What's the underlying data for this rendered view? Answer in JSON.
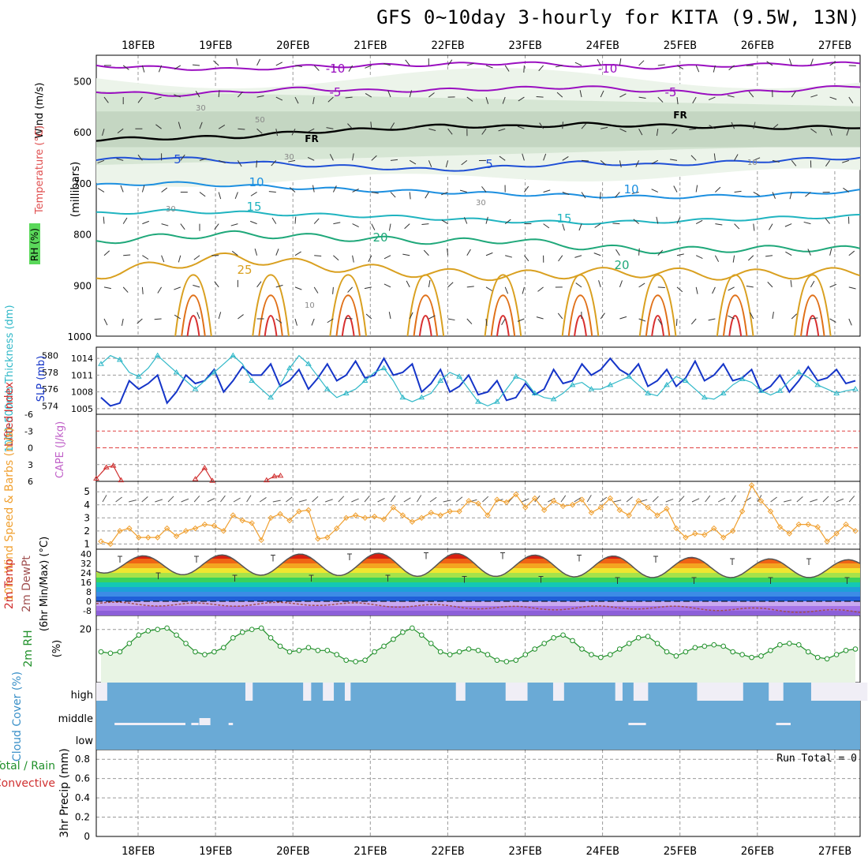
{
  "title": "GFS 0~10day 3-hourly for KITA (9.5W, 13N)",
  "chart_data": {
    "type": "line",
    "dates": [
      "18FEB",
      "19FEB",
      "20FEB",
      "21FEB",
      "22FEB",
      "23FEB",
      "24FEB",
      "25FEB",
      "26FEB",
      "27FEB"
    ],
    "panels": [
      {
        "id": "upper",
        "labels": {
          "wind": "Wind (m/s)",
          "temp": "Temperature (°C)",
          "rh": "RH (%)",
          "axis": "(millibars)"
        },
        "y_ticks": [
          500,
          600,
          700,
          800,
          900,
          1000
        ],
        "ylim": [
          450,
          1000
        ],
        "rh_labels": [
          "30",
          "50",
          "30",
          "30",
          "30",
          "10",
          "10"
        ],
        "isotherm_labels": [
          "-10",
          "-10",
          "-5",
          "-5",
          "FR",
          "FR",
          "5",
          "5",
          "10",
          "10",
          "15",
          "15",
          "20",
          "20",
          "25"
        ],
        "isotherms": [
          {
            "name": "-10",
            "color": "#9a0fc0",
            "p": [
              470,
              475,
              478,
              472,
              470,
              468,
              465,
              470,
              474,
              470,
              468,
              466
            ]
          },
          {
            "name": "-5",
            "color": "#9a0fc0",
            "p": [
              520,
              528,
              522,
              515,
              520,
              518,
              515,
              512,
              520,
              525,
              518,
              510
            ]
          },
          {
            "name": "FR",
            "color": "#000000",
            "p": [
              615,
              612,
              610,
              600,
              595,
              588,
              590,
              585,
              588,
              590,
              592,
              590
            ]
          },
          {
            "name": "5",
            "color": "#1f4fd6",
            "p": [
              655,
              650,
              658,
              665,
              670,
              675,
              668,
              660,
              665,
              660,
              655,
              650
            ]
          },
          {
            "name": "10",
            "color": "#1c8fe0",
            "p": [
              705,
              700,
              705,
              710,
              715,
              718,
              722,
              725,
              728,
              726,
              722,
              715
            ]
          },
          {
            "name": "15",
            "color": "#20b4c0",
            "p": [
              760,
              755,
              758,
              762,
              765,
              770,
              775,
              778,
              776,
              772,
              768,
              765
            ]
          },
          {
            "name": "20",
            "color": "#1fa87a",
            "p": [
              815,
              805,
              800,
              805,
              810,
              815,
              812,
              825,
              832,
              830,
              828,
              830
            ]
          },
          {
            "name": "25",
            "color": "#d9a020",
            "p": [
              880,
              860,
              845,
              860,
              870,
              878,
              882,
              876,
              875,
              880,
              878,
              875
            ]
          }
        ]
      },
      {
        "id": "thickness_slp",
        "labels": {
          "thickness": "1000-500mb Thickness (dm)",
          "slp": "SLP (mb)"
        },
        "left_ticks": [
          "580",
          "578",
          "576",
          "574"
        ],
        "right_ticks": [
          "1014",
          "1011",
          "1008",
          "1005"
        ],
        "thickness_ylim": [
          573,
          581
        ],
        "slp_ylim": [
          1004,
          1016
        ],
        "slp": [
          1007,
          1005.5,
          1006,
          1010,
          1008.5,
          1009.5,
          1011,
          1006,
          1008,
          1011,
          1009.5,
          1010,
          1012,
          1008,
          1010,
          1012.5,
          1011,
          1011,
          1013,
          1009,
          1010,
          1012,
          1008.5,
          1010.5,
          1013,
          1010,
          1011,
          1013.5,
          1010.5,
          1011,
          1014,
          1011,
          1011.5,
          1013,
          1008,
          1009.5,
          1012,
          1008,
          1009,
          1011,
          1007.5,
          1008,
          1010,
          1006.5,
          1007,
          1009.5,
          1007.5,
          1008.5,
          1012,
          1009.5,
          1010,
          1013,
          1011,
          1012,
          1014,
          1012,
          1011,
          1013,
          1009,
          1010,
          1012,
          1009,
          1010.5,
          1013.5,
          1010,
          1011,
          1013,
          1010,
          1010.5,
          1012,
          1008,
          1009,
          1011,
          1008,
          1010,
          1012.5,
          1010,
          1010.5,
          1012,
          1009.5,
          1010
        ],
        "thickness": [
          579,
          580,
          579.5,
          578,
          577.5,
          578.5,
          580,
          579,
          578,
          577,
          576,
          577,
          578,
          579,
          580,
          579,
          577,
          576,
          575,
          576.5,
          578.5,
          580,
          579,
          577.5,
          576,
          575,
          575.5,
          576,
          577,
          578,
          578.5,
          577,
          575,
          574.5,
          575,
          575.5,
          577,
          578,
          577.5,
          576,
          574.5,
          574,
          574.5,
          576,
          577.5,
          577,
          575.5,
          575,
          574.8,
          575.5,
          576.5,
          576.8,
          576,
          576,
          576.5,
          577,
          577.5,
          576.5,
          575.5,
          575.2,
          576.5,
          577.5,
          577,
          576,
          575,
          574.8,
          575.5,
          576.5,
          577.2,
          576.8,
          575.8,
          575.3,
          575.8,
          577,
          578,
          577.4,
          576.5,
          576,
          575.5,
          575.8,
          576
        ]
      },
      {
        "id": "li_cape",
        "labels": {
          "li": "Lifted Index",
          "cape": "CAPE (J/kg)"
        },
        "left_ticks": [
          "-6",
          "-3",
          "0",
          "3",
          "6"
        ],
        "ylim": [
          -6,
          6
        ],
        "li_segments": [
          {
            "x": [
              0.0,
              0.13,
              0.22,
              0.32
            ],
            "y": [
              5.5,
              3.5,
              3.2,
              5.8
            ]
          },
          {
            "x": [
              1.28,
              1.4,
              1.5
            ],
            "y": [
              5.6,
              3.6,
              5.9
            ]
          },
          {
            "x": [
              2.2,
              2.3,
              2.38
            ],
            "y": [
              5.8,
              5.1,
              5.0
            ]
          }
        ]
      },
      {
        "id": "wind10m",
        "labels": {
          "wind": "10m Wind Speed & Barbs (m/s)"
        },
        "left_ticks": [
          "5",
          "4",
          "3",
          "2",
          "1"
        ],
        "ylim": [
          0.6,
          5.8
        ],
        "speed": [
          1.2,
          1,
          2,
          2.2,
          1.5,
          1.5,
          1.5,
          2.2,
          1.6,
          2,
          2.2,
          2.5,
          2.4,
          2,
          3.2,
          2.8,
          2.6,
          1.3,
          3,
          3.3,
          2.8,
          3.5,
          3.6,
          1.4,
          1.5,
          2.2,
          3,
          3.2,
          3,
          3.1,
          2.9,
          3.8,
          3.2,
          2.7,
          3,
          3.4,
          3.2,
          3.5,
          3.5,
          4.3,
          4.1,
          3.2,
          4.4,
          4.2,
          4.8,
          3.8,
          4.5,
          3.6,
          4.3,
          3.9,
          4,
          4.4,
          3.4,
          3.8,
          4.5,
          3.6,
          3.2,
          4.3,
          3.8,
          3.2,
          3.7,
          2.2,
          1.5,
          1.8,
          1.7,
          2.2,
          1.5,
          2,
          3.5,
          5.5,
          4.3,
          3.5,
          2.3,
          1.8,
          2.5,
          2.5,
          2.3,
          1.2,
          1.8,
          2.5,
          2
        ],
        "barbs": "yes"
      },
      {
        "id": "temp2m",
        "labels": {
          "temp": "2m Temp",
          "dewpt": "2m DewPt",
          "minmax": "(6hr Min/Max) (°C)"
        },
        "left_ticks": [
          "40",
          "32",
          "24",
          "16",
          "8",
          "0",
          "-8"
        ],
        "ylim": [
          -12,
          44
        ],
        "color_bands": [
          {
            "from": -12,
            "to": -8,
            "color": "#8c5fd8"
          },
          {
            "from": -8,
            "to": -4,
            "color": "#a775e8"
          },
          {
            "from": -4,
            "to": 0,
            "color": "#c9a8f0"
          },
          {
            "from": 0,
            "to": 4,
            "color": "#2060d8"
          },
          {
            "from": 4,
            "to": 8,
            "color": "#3c8ce6"
          },
          {
            "from": 8,
            "to": 12,
            "color": "#1ea0d8"
          },
          {
            "from": 12,
            "to": 16,
            "color": "#14c8b4"
          },
          {
            "from": 16,
            "to": 20,
            "color": "#3cd25a"
          },
          {
            "from": 20,
            "to": 24,
            "color": "#a6e24a"
          },
          {
            "from": 24,
            "to": 28,
            "color": "#f0e630"
          },
          {
            "from": 28,
            "to": 32,
            "color": "#f4a420"
          },
          {
            "from": 32,
            "to": 36,
            "color": "#f06414"
          },
          {
            "from": 36,
            "to": 40,
            "color": "#d82010"
          },
          {
            "from": 40,
            "to": 44,
            "color": "#8c1010"
          }
        ],
        "temp_max": [
          38,
          39,
          40,
          41,
          39,
          38,
          36,
          35
        ],
        "temp_min": [
          24,
          22,
          22,
          21,
          21,
          20,
          20,
          20
        ],
        "dewpt": [
          -2,
          -3,
          -2,
          -4,
          -6,
          -5,
          -7,
          -9
        ]
      },
      {
        "id": "rh2m",
        "labels": {
          "rh": "2m RH",
          "unit": "(%)"
        },
        "left_ticks": [
          "20"
        ],
        "ylim": [
          1,
          25
        ],
        "values": [
          12,
          11.5,
          12,
          15,
          18,
          19.5,
          20,
          20.5,
          18,
          15,
          12,
          11,
          12,
          13.5,
          17,
          19,
          20,
          20.5,
          17,
          14,
          12,
          12.5,
          13.5,
          12.5,
          12.5,
          11,
          9,
          8.5,
          9,
          12,
          14,
          16.5,
          19,
          20.5,
          18,
          15,
          12,
          11,
          12,
          13,
          12.5,
          11,
          9,
          8.5,
          9,
          11,
          13,
          15,
          17,
          18,
          16,
          13,
          11,
          10,
          11,
          13,
          15,
          17,
          17.5,
          15,
          12,
          10.5,
          12,
          13.5,
          14,
          14.5,
          14,
          12,
          11,
          10,
          10.5,
          12.5,
          14.5,
          15,
          14.5,
          12,
          10,
          9.5,
          11,
          12.5,
          13
        ]
      },
      {
        "id": "cloud",
        "labels": {
          "cover": "Cloud Cover (%)",
          "high": "high",
          "middle": "middle",
          "low": "low"
        },
        "high_gaps": [
          [
            0,
            0.15
          ],
          [
            2.04,
            2.14
          ],
          [
            2.83,
            2.94
          ],
          [
            3.1,
            3.25
          ],
          [
            3.4,
            3.48
          ],
          [
            4.92,
            5.05
          ],
          [
            5.6,
            5.9
          ],
          [
            6.25,
            6.4
          ],
          [
            7.1,
            7.2
          ],
          [
            7.35,
            7.55
          ],
          [
            8.22,
            8.85
          ],
          [
            9.2,
            9.4
          ],
          [
            9.78,
            10.55
          ]
        ],
        "mid_gaps": [
          [
            0.25,
            1.22
          ],
          [
            1.3,
            1.4
          ],
          [
            1.41,
            1.55
          ],
          [
            1.81,
            1.87
          ],
          [
            7.28,
            7.52
          ],
          [
            9.3,
            9.5
          ]
        ]
      },
      {
        "id": "precip",
        "labels": {
          "precip": "3hr Precip (mm)",
          "total": "Total / Rain",
          "conv": "Convective",
          "run": "Run Total = 0"
        },
        "left_ticks": [
          "0.8",
          "0.6",
          "0.4",
          "0.2",
          "0"
        ],
        "ylim": [
          0,
          0.9
        ]
      }
    ]
  }
}
